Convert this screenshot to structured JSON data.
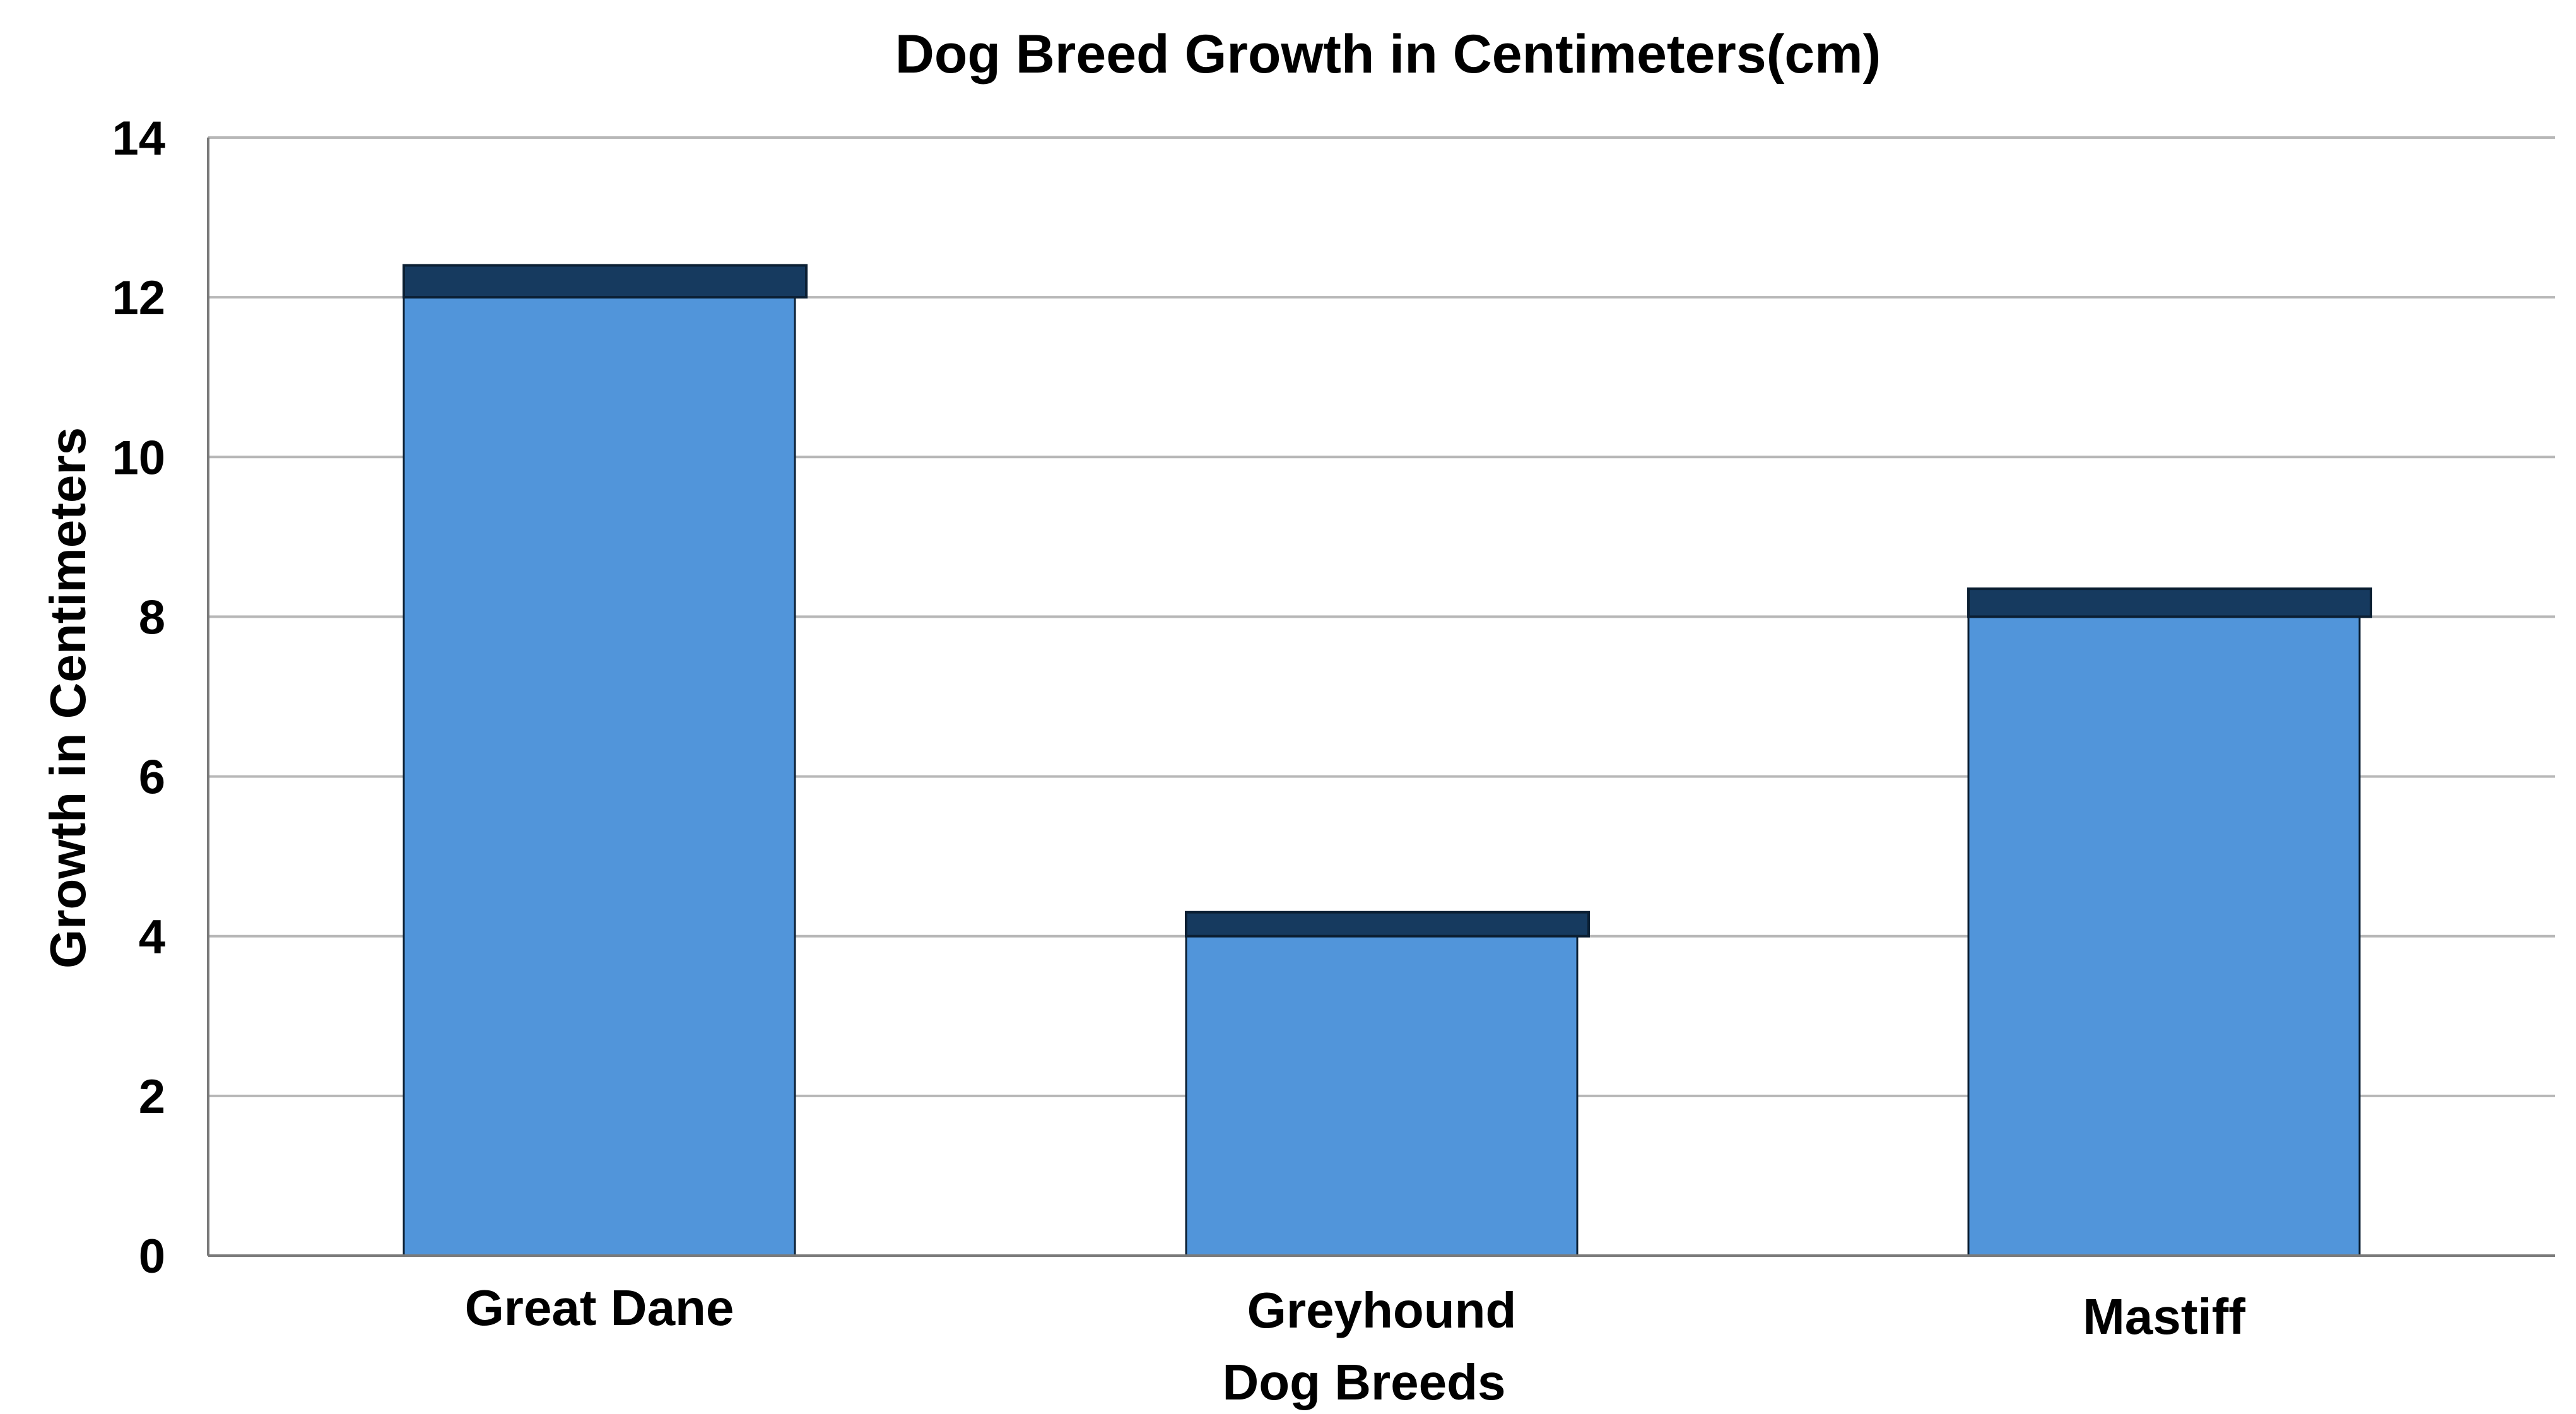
{
  "chart_data": {
    "type": "bar",
    "title": "Dog Breed Growth in Centimeters(cm)",
    "xlabel": "Dog Breeds",
    "ylabel": "Growth in Centimeters",
    "categories": [
      "Great Dane",
      "Greyhound",
      "Mastiff"
    ],
    "values": [
      12,
      4,
      8
    ],
    "cap_values": [
      0.4,
      0.3,
      0.35
    ],
    "ylim": [
      0,
      14
    ],
    "yticks": [
      0,
      2,
      4,
      6,
      8,
      10,
      12,
      14
    ],
    "ytick_labels": [
      "0",
      "2",
      "4",
      "6",
      "8",
      "10",
      "12",
      "14"
    ],
    "grid": true,
    "legend": "none",
    "colors": {
      "bar_fill": "#5195da",
      "bar_stroke": "#0b1f33",
      "cap_fill": "#163a5f",
      "grid": "#b7b7b7",
      "axis": "#7a7a7a"
    }
  }
}
